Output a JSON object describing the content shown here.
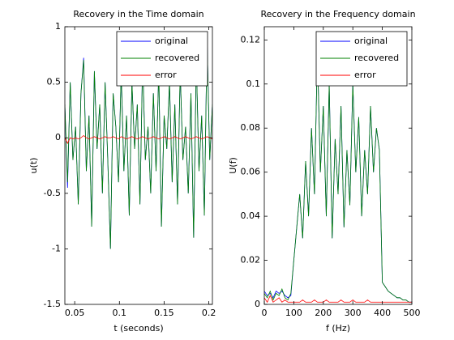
{
  "chart_data": [
    {
      "type": "line",
      "title": "Recovery in the Time domain",
      "xlabel": "t (seconds)",
      "ylabel": "u(t)",
      "xlim": [
        0.039,
        0.204
      ],
      "xticks": [
        0.05,
        0.1,
        0.15,
        0.2
      ],
      "ylim": [
        -1.5,
        1
      ],
      "yticks": [
        -1.5,
        -1,
        -0.5,
        0,
        0.5,
        1
      ],
      "legend": "upper right",
      "x": [
        0.039,
        0.042,
        0.045,
        0.048,
        0.051,
        0.054,
        0.057,
        0.06,
        0.063,
        0.066,
        0.069,
        0.072,
        0.075,
        0.078,
        0.081,
        0.084,
        0.087,
        0.09,
        0.093,
        0.096,
        0.099,
        0.102,
        0.105,
        0.108,
        0.111,
        0.114,
        0.117,
        0.12,
        0.123,
        0.126,
        0.129,
        0.132,
        0.135,
        0.138,
        0.141,
        0.144,
        0.147,
        0.15,
        0.153,
        0.156,
        0.159,
        0.162,
        0.165,
        0.168,
        0.171,
        0.174,
        0.177,
        0.18,
        0.183,
        0.186,
        0.189,
        0.192,
        0.195,
        0.198,
        0.201,
        0.204
      ],
      "series": [
        {
          "name": "original",
          "color": "#0000ff",
          "values": [
            0.3,
            -0.45,
            0.5,
            -0.2,
            0.1,
            -0.6,
            0.4,
            0.72,
            -0.3,
            0.2,
            -0.8,
            0.6,
            -0.1,
            0.3,
            -0.5,
            0.5,
            -0.2,
            -1.0,
            0.4,
            0.1,
            -0.4,
            0.6,
            -0.3,
            0.2,
            -0.7,
            0.5,
            -0.1,
            0.3,
            -0.6,
            0.7,
            -0.2,
            0.1,
            -0.5,
            0.4,
            -0.3,
            0.6,
            -0.8,
            0.2,
            -0.1,
            0.5,
            -0.4,
            0.3,
            -0.6,
            0.6,
            -0.2,
            0.1,
            -0.5,
            0.4,
            -0.9,
            0.7,
            -0.3,
            0.2,
            -0.7,
            0.9,
            -0.2,
            0.3
          ]
        },
        {
          "name": "recovered",
          "color": "#008000",
          "values": [
            0.3,
            -0.4,
            0.5,
            -0.2,
            0.1,
            -0.6,
            0.4,
            0.7,
            -0.3,
            0.2,
            -0.8,
            0.6,
            -0.1,
            0.3,
            -0.5,
            0.5,
            -0.2,
            -1.0,
            0.4,
            0.1,
            -0.4,
            0.6,
            -0.3,
            0.2,
            -0.7,
            0.5,
            -0.1,
            0.3,
            -0.6,
            0.7,
            -0.2,
            0.1,
            -0.5,
            0.4,
            -0.3,
            0.6,
            -0.8,
            0.2,
            -0.1,
            0.5,
            -0.4,
            0.3,
            -0.6,
            0.6,
            -0.2,
            0.1,
            -0.5,
            0.4,
            -0.9,
            0.7,
            -0.3,
            0.2,
            -0.7,
            0.9,
            -0.2,
            0.3
          ]
        },
        {
          "name": "error",
          "color": "#ff0000",
          "values": [
            0.0,
            -0.05,
            0.0,
            -0.01,
            0.0,
            -0.01,
            0.0,
            0.02,
            0.0,
            -0.01,
            0.0,
            0.01,
            0.0,
            -0.01,
            0.0,
            0.01,
            0.0,
            0.0,
            0.01,
            0.0,
            -0.01,
            0.01,
            0.0,
            -0.01,
            0.0,
            0.01,
            0.0,
            -0.01,
            0.0,
            0.01,
            0.0,
            -0.01,
            0.0,
            0.01,
            0.0,
            -0.01,
            0.0,
            0.01,
            0.0,
            -0.01,
            0.0,
            0.01,
            0.0,
            -0.01,
            0.0,
            0.01,
            0.0,
            -0.01,
            0.0,
            0.01,
            0.0,
            -0.01,
            0.0,
            0.01,
            0.0,
            -0.01
          ]
        }
      ]
    },
    {
      "type": "line",
      "title": "Recovery in the Frequency domain",
      "xlabel": "f (Hz)",
      "ylabel": "U(f)",
      "xlim": [
        0,
        500
      ],
      "xticks": [
        0,
        100,
        200,
        300,
        400,
        500
      ],
      "ylim": [
        0,
        0.126
      ],
      "yticks": [
        0,
        0.02,
        0.04,
        0.06,
        0.08,
        0.1,
        0.12
      ],
      "legend": "upper right",
      "x": [
        0,
        10,
        20,
        30,
        40,
        50,
        60,
        70,
        80,
        90,
        100,
        110,
        120,
        130,
        140,
        150,
        160,
        170,
        180,
        190,
        200,
        210,
        220,
        230,
        240,
        250,
        260,
        270,
        280,
        290,
        300,
        310,
        320,
        330,
        340,
        350,
        360,
        370,
        380,
        390,
        400,
        410,
        420,
        430,
        440,
        450,
        460,
        470,
        480,
        490,
        500
      ],
      "series": [
        {
          "name": "original",
          "color": "#0000ff",
          "values": [
            0.006,
            0.004,
            0.005,
            0.003,
            0.006,
            0.005,
            0.006,
            0.004,
            0.003,
            0.004,
            0.02,
            0.035,
            0.05,
            0.03,
            0.065,
            0.04,
            0.08,
            0.05,
            0.115,
            0.06,
            0.09,
            0.04,
            0.1,
            0.03,
            0.075,
            0.05,
            0.09,
            0.035,
            0.07,
            0.045,
            0.1,
            0.06,
            0.085,
            0.04,
            0.07,
            0.05,
            0.09,
            0.06,
            0.08,
            0.07,
            0.01,
            0.008,
            0.006,
            0.005,
            0.004,
            0.003,
            0.003,
            0.002,
            0.002,
            0.001,
            0.001
          ]
        },
        {
          "name": "recovered",
          "color": "#008000",
          "values": [
            0.005,
            0.003,
            0.006,
            0.002,
            0.005,
            0.004,
            0.007,
            0.003,
            0.002,
            0.005,
            0.02,
            0.035,
            0.05,
            0.03,
            0.065,
            0.04,
            0.08,
            0.05,
            0.115,
            0.06,
            0.09,
            0.04,
            0.1,
            0.03,
            0.075,
            0.05,
            0.09,
            0.035,
            0.07,
            0.045,
            0.1,
            0.06,
            0.085,
            0.04,
            0.07,
            0.05,
            0.09,
            0.06,
            0.08,
            0.07,
            0.01,
            0.008,
            0.006,
            0.005,
            0.004,
            0.003,
            0.003,
            0.002,
            0.002,
            0.001,
            0.001
          ]
        },
        {
          "name": "error",
          "color": "#ff0000",
          "values": [
            0.003,
            0.001,
            0.004,
            0.001,
            0.002,
            0.003,
            0.001,
            0.002,
            0.001,
            0.001,
            0.001,
            0.001,
            0.001,
            0.002,
            0.001,
            0.001,
            0.001,
            0.002,
            0.001,
            0.001,
            0.001,
            0.002,
            0.001,
            0.001,
            0.001,
            0.001,
            0.002,
            0.001,
            0.001,
            0.001,
            0.002,
            0.001,
            0.001,
            0.001,
            0.001,
            0.002,
            0.001,
            0.001,
            0.001,
            0.001,
            0.001,
            0.001,
            0.001,
            0.001,
            0.001,
            0.001,
            0.001,
            0.001,
            0.001,
            0.001,
            0.001
          ]
        }
      ]
    }
  ]
}
